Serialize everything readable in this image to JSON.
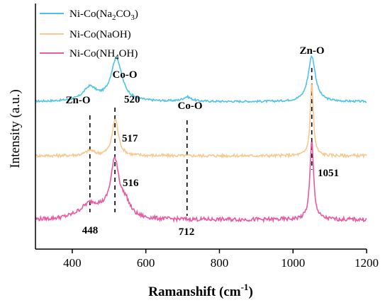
{
  "chart_data": {
    "type": "line",
    "title": "",
    "xlabel_parts": {
      "base": "Ramanshift (cm",
      "sup": "-1",
      "end": ")"
    },
    "ylabel": "Intensity (a.u.)",
    "xlim": [
      300,
      1200
    ],
    "xticks": [
      400,
      600,
      800,
      1000,
      1200
    ],
    "y_ticks_shown": false,
    "grid": false,
    "legend_position": "top-left",
    "series": [
      {
        "legend_parts": [
          "Ni-Co(Na",
          "2",
          "CO",
          "3",
          ")"
        ],
        "color": "#4fc3e8",
        "baseline": 0.6,
        "peaks": [
          {
            "center": 448,
            "height": 0.055,
            "width": 22
          },
          {
            "center": 520,
            "height": 0.175,
            "width": 18
          },
          {
            "center": 712,
            "height": 0.018,
            "width": 14
          },
          {
            "center": 1051,
            "height": 0.185,
            "width": 12
          }
        ],
        "noise": 0.004
      },
      {
        "legend_parts": [
          "Ni-Co(NaOH)"
        ],
        "color": "#f5c98f",
        "baseline": 0.38,
        "peaks": [
          {
            "center": 448,
            "height": 0.02,
            "width": 14
          },
          {
            "center": 517,
            "height": 0.15,
            "width": 10
          },
          {
            "center": 1051,
            "height": 0.3,
            "width": 5
          }
        ],
        "noise": 0.006
      },
      {
        "legend_parts": [
          "Ni-Co(NH",
          "4",
          "OH)"
        ],
        "color": "#ea5a9f",
        "baseline": 0.12,
        "peaks": [
          {
            "center": 448,
            "height": 0.04,
            "width": 30
          },
          {
            "center": 516,
            "height": 0.22,
            "width": 14
          },
          {
            "center": 545,
            "height": 0.05,
            "width": 15
          },
          {
            "center": 1051,
            "height": 0.32,
            "width": 6
          }
        ],
        "noise": 0.008
      }
    ],
    "markers": [
      {
        "x": 448,
        "top_label": "Zn-O",
        "bottom_label": "448"
      },
      {
        "x": 516,
        "top_label": "Co-O",
        "bottom_label": ""
      },
      {
        "x": 712,
        "top_label": "Co-O",
        "bottom_label": "712"
      },
      {
        "x": 1051,
        "top_label": "Zn-O",
        "bottom_label": ""
      }
    ],
    "peak_labels": [
      "520",
      "517",
      "516",
      "1051"
    ]
  }
}
